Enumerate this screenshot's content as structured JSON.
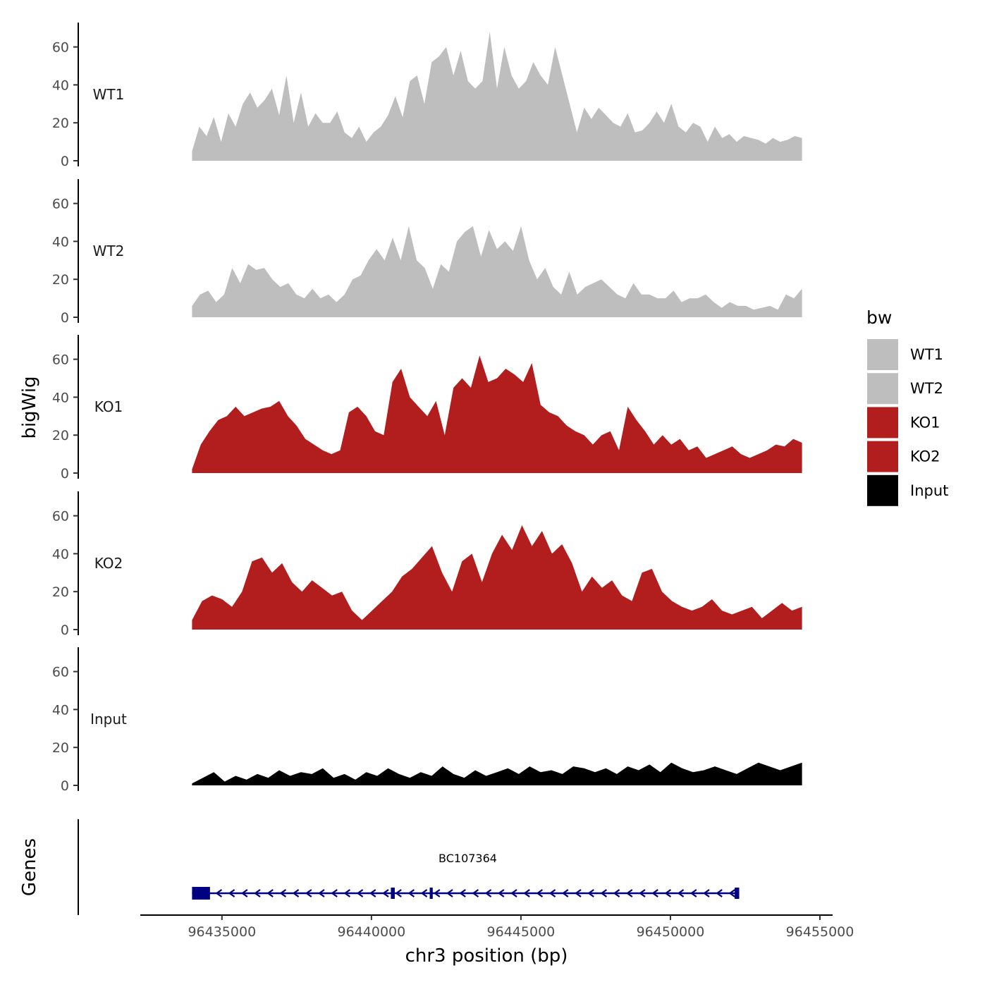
{
  "chart_data": {
    "type": "area",
    "ylabel": "bigWig",
    "xlabel": "chr3 position (bp)",
    "xlim": [
      96433000,
      96455000
    ],
    "x_ticks": [
      96435000,
      96440000,
      96445000,
      96450000,
      96455000
    ],
    "x_tick_labels": [
      "96435000",
      "96440000",
      "96445000",
      "96450000",
      "96455000"
    ],
    "ylim": [
      0,
      72
    ],
    "y_ticks": [
      0,
      20,
      40,
      60
    ],
    "y_tick_labels": [
      "0",
      "20",
      "40",
      "60"
    ],
    "grid": false,
    "legend": {
      "title": "bw",
      "position": "right",
      "entries": [
        {
          "label": "WT1",
          "color": "#bebebe"
        },
        {
          "label": "WT2",
          "color": "#bebebe"
        },
        {
          "label": "KO1",
          "color": "#b21e1e"
        },
        {
          "label": "KO2",
          "color": "#b21e1e"
        },
        {
          "label": "Input",
          "color": "#000000"
        }
      ]
    },
    "x_start": 96434000,
    "x_end": 96454400,
    "series": [
      {
        "name": "WT1",
        "color": "#bebebe",
        "values": [
          5,
          18,
          13,
          23,
          10,
          25,
          18,
          30,
          36,
          28,
          32,
          38,
          24,
          45,
          20,
          36,
          18,
          25,
          20,
          20,
          26,
          15,
          12,
          18,
          10,
          15,
          18,
          24,
          34,
          23,
          42,
          45,
          30,
          52,
          55,
          60,
          45,
          58,
          42,
          38,
          42,
          68,
          38,
          60,
          45,
          38,
          42,
          52,
          45,
          40,
          60,
          45,
          30,
          15,
          28,
          22,
          28,
          24,
          20,
          18,
          25,
          15,
          16,
          20,
          26,
          20,
          30,
          18,
          15,
          20,
          18,
          10,
          18,
          12,
          14,
          10,
          13,
          12,
          11,
          9,
          12,
          10,
          11,
          13,
          12
        ]
      },
      {
        "name": "WT2",
        "color": "#bebebe",
        "values": [
          6,
          12,
          14,
          8,
          12,
          26,
          18,
          28,
          25,
          26,
          20,
          16,
          18,
          12,
          10,
          15,
          10,
          12,
          8,
          12,
          20,
          22,
          30,
          36,
          30,
          42,
          30,
          48,
          30,
          26,
          15,
          28,
          24,
          40,
          45,
          48,
          32,
          46,
          36,
          40,
          35,
          48,
          30,
          20,
          26,
          16,
          12,
          24,
          12,
          16,
          18,
          20,
          16,
          12,
          10,
          18,
          12,
          12,
          10,
          10,
          14,
          8,
          10,
          10,
          12,
          8,
          5,
          8,
          6,
          6,
          4,
          5,
          6,
          4,
          12,
          10,
          15
        ]
      },
      {
        "name": "KO1",
        "color": "#b21e1e",
        "values": [
          2,
          15,
          22,
          28,
          30,
          35,
          30,
          32,
          34,
          35,
          38,
          30,
          25,
          18,
          15,
          12,
          10,
          12,
          32,
          35,
          30,
          22,
          20,
          48,
          55,
          40,
          35,
          30,
          38,
          20,
          45,
          50,
          45,
          62,
          48,
          50,
          55,
          52,
          48,
          58,
          36,
          32,
          30,
          25,
          22,
          20,
          15,
          20,
          22,
          12,
          35,
          28,
          22,
          15,
          20,
          15,
          18,
          12,
          14,
          8,
          10,
          12,
          14,
          10,
          8,
          10,
          12,
          15,
          14,
          18,
          16
        ]
      },
      {
        "name": "KO2",
        "color": "#b21e1e",
        "values": [
          5,
          15,
          18,
          16,
          12,
          20,
          36,
          38,
          30,
          35,
          25,
          20,
          26,
          22,
          18,
          20,
          10,
          5,
          10,
          15,
          20,
          28,
          32,
          38,
          44,
          30,
          20,
          36,
          40,
          25,
          40,
          50,
          42,
          55,
          44,
          52,
          40,
          45,
          35,
          20,
          28,
          22,
          26,
          18,
          15,
          30,
          32,
          20,
          15,
          12,
          10,
          12,
          16,
          10,
          8,
          10,
          12,
          6,
          10,
          14,
          10,
          12
        ]
      },
      {
        "name": "Input",
        "color": "#000000",
        "values": [
          1,
          4,
          7,
          2,
          5,
          3,
          6,
          4,
          8,
          5,
          7,
          6,
          9,
          4,
          6,
          3,
          7,
          5,
          9,
          6,
          4,
          7,
          5,
          10,
          6,
          4,
          8,
          5,
          7,
          9,
          6,
          10,
          7,
          8,
          6,
          10,
          9,
          7,
          9,
          6,
          10,
          8,
          11,
          7,
          12,
          9,
          7,
          8,
          10,
          8,
          6,
          9,
          12,
          10,
          8,
          10,
          12
        ]
      }
    ]
  },
  "gene_track": {
    "label": "Genes",
    "gene_name": "BC107364",
    "start": 96434000,
    "end": 96452300,
    "exons": [
      [
        96434000,
        96434600
      ],
      [
        96440650,
        96440780
      ],
      [
        96441950,
        96442050
      ],
      [
        96452150,
        96452300
      ]
    ],
    "strand": "-",
    "color": "#000080"
  }
}
